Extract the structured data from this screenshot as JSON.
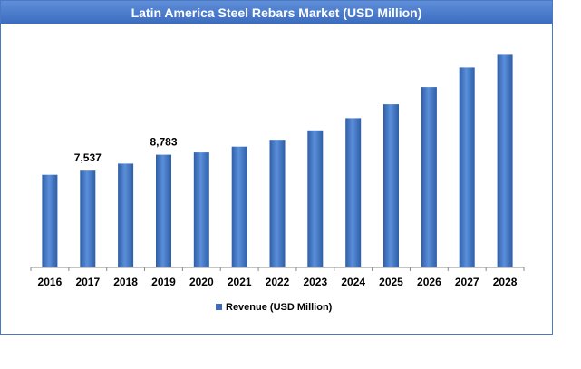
{
  "chart_data": {
    "type": "bar",
    "title": "Latin America Steel Rebars Market (USD Million)",
    "categories": [
      "2016",
      "2017",
      "2018",
      "2019",
      "2020",
      "2021",
      "2022",
      "2023",
      "2024",
      "2025",
      "2026",
      "2027",
      "2028"
    ],
    "series": [
      {
        "name": "Revenue (USD Million)",
        "values": [
          7220,
          7537,
          8090,
          8783,
          8960,
          9410,
          9940,
          10670,
          11620,
          12700,
          14040,
          15570,
          16560
        ],
        "data_labels": [
          "",
          "7,537",
          "",
          "8,783",
          "",
          "",
          "",
          "",
          "",
          "",
          "",
          "",
          ""
        ]
      }
    ],
    "ylim": [
      0,
      18000
    ],
    "grid": false,
    "legend": "bottom",
    "colors": {
      "bar_light": "#5b8fd9",
      "bar_dark": "#2f5ea8",
      "title_bg": "#4a7cc8",
      "frame": "#4a78c2"
    }
  }
}
